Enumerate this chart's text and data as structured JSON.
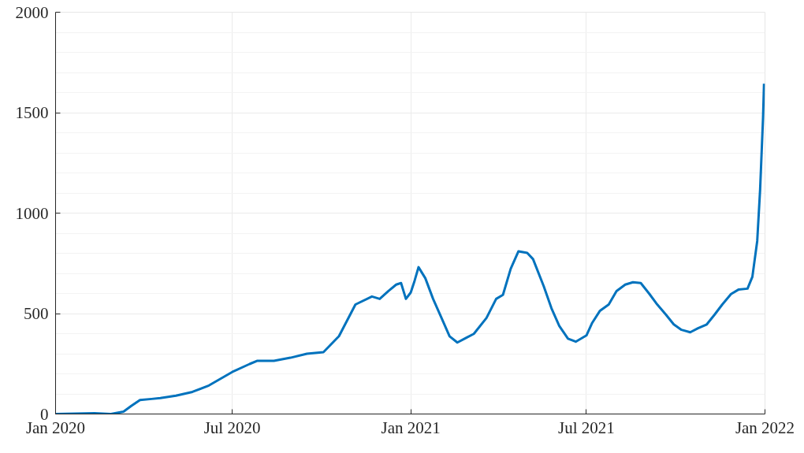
{
  "chart_data": {
    "type": "line",
    "grid": true,
    "xlim": [
      "2020-01-01",
      "2022-01-01"
    ],
    "xticks": [
      {
        "value": "2020-01-01",
        "label": "Jan 2020"
      },
      {
        "value": "2020-07-01",
        "label": "Jul 2020"
      },
      {
        "value": "2021-01-01",
        "label": "Jan 2021"
      },
      {
        "value": "2021-07-01",
        "label": "Jul 2021"
      },
      {
        "value": "2022-01-01",
        "label": "Jan 2022"
      }
    ],
    "ylim": [
      0,
      2000
    ],
    "yticks": [
      0,
      500,
      1000,
      1500,
      2000
    ],
    "x": [
      "2020-01-01",
      "2020-02-10",
      "2020-02-27",
      "2020-03-11",
      "2020-03-19",
      "2020-03-28",
      "2020-04-09",
      "2020-04-18",
      "2020-05-04",
      "2020-05-21",
      "2020-06-07",
      "2020-07-01",
      "2020-07-19",
      "2020-07-27",
      "2020-08-13",
      "2020-08-30",
      "2020-09-16",
      "2020-10-03",
      "2020-10-19",
      "2020-11-05",
      "2020-11-22",
      "2020-11-30",
      "2020-12-09",
      "2020-12-17",
      "2020-12-22",
      "2020-12-27",
      "2021-01-01",
      "2021-01-05",
      "2021-01-09",
      "2021-01-16",
      "2021-01-24",
      "2021-02-01",
      "2021-02-10",
      "2021-02-18",
      "2021-02-27",
      "2021-03-07",
      "2021-03-20",
      "2021-03-30",
      "2021-04-06",
      "2021-04-14",
      "2021-04-22",
      "2021-05-01",
      "2021-05-07",
      "2021-05-18",
      "2021-05-26",
      "2021-06-03",
      "2021-06-12",
      "2021-06-20",
      "2021-07-01",
      "2021-07-07",
      "2021-07-15",
      "2021-07-24",
      "2021-08-01",
      "2021-08-10",
      "2021-08-18",
      "2021-08-26",
      "2021-09-04",
      "2021-09-12",
      "2021-09-21",
      "2021-09-29",
      "2021-10-07",
      "2021-10-16",
      "2021-10-24",
      "2021-11-02",
      "2021-11-10",
      "2021-11-18",
      "2021-11-27",
      "2021-12-05",
      "2021-12-14",
      "2021-12-19",
      "2021-12-24",
      "2021-12-27",
      "2021-12-30",
      "2021-12-31"
    ],
    "series": [
      {
        "color": "#0072bd",
        "values": [
          0,
          4,
          0,
          12,
          40,
          70,
          75,
          79,
          91,
          110,
          142,
          209,
          249,
          265,
          265,
          280,
          300,
          308,
          387,
          545,
          585,
          573,
          612,
          644,
          652,
          573,
          605,
          664,
          731,
          676,
          573,
          486,
          387,
          356,
          379,
          399,
          478,
          573,
          593,
          723,
          810,
          802,
          771,
          636,
          526,
          439,
          375,
          360,
          391,
          454,
          514,
          545,
          612,
          644,
          656,
          652,
          597,
          545,
          494,
          446,
          419,
          407,
          427,
          446,
          494,
          545,
          597,
          620,
          624,
          683,
          861,
          1118,
          1474,
          1644
        ]
      }
    ]
  }
}
